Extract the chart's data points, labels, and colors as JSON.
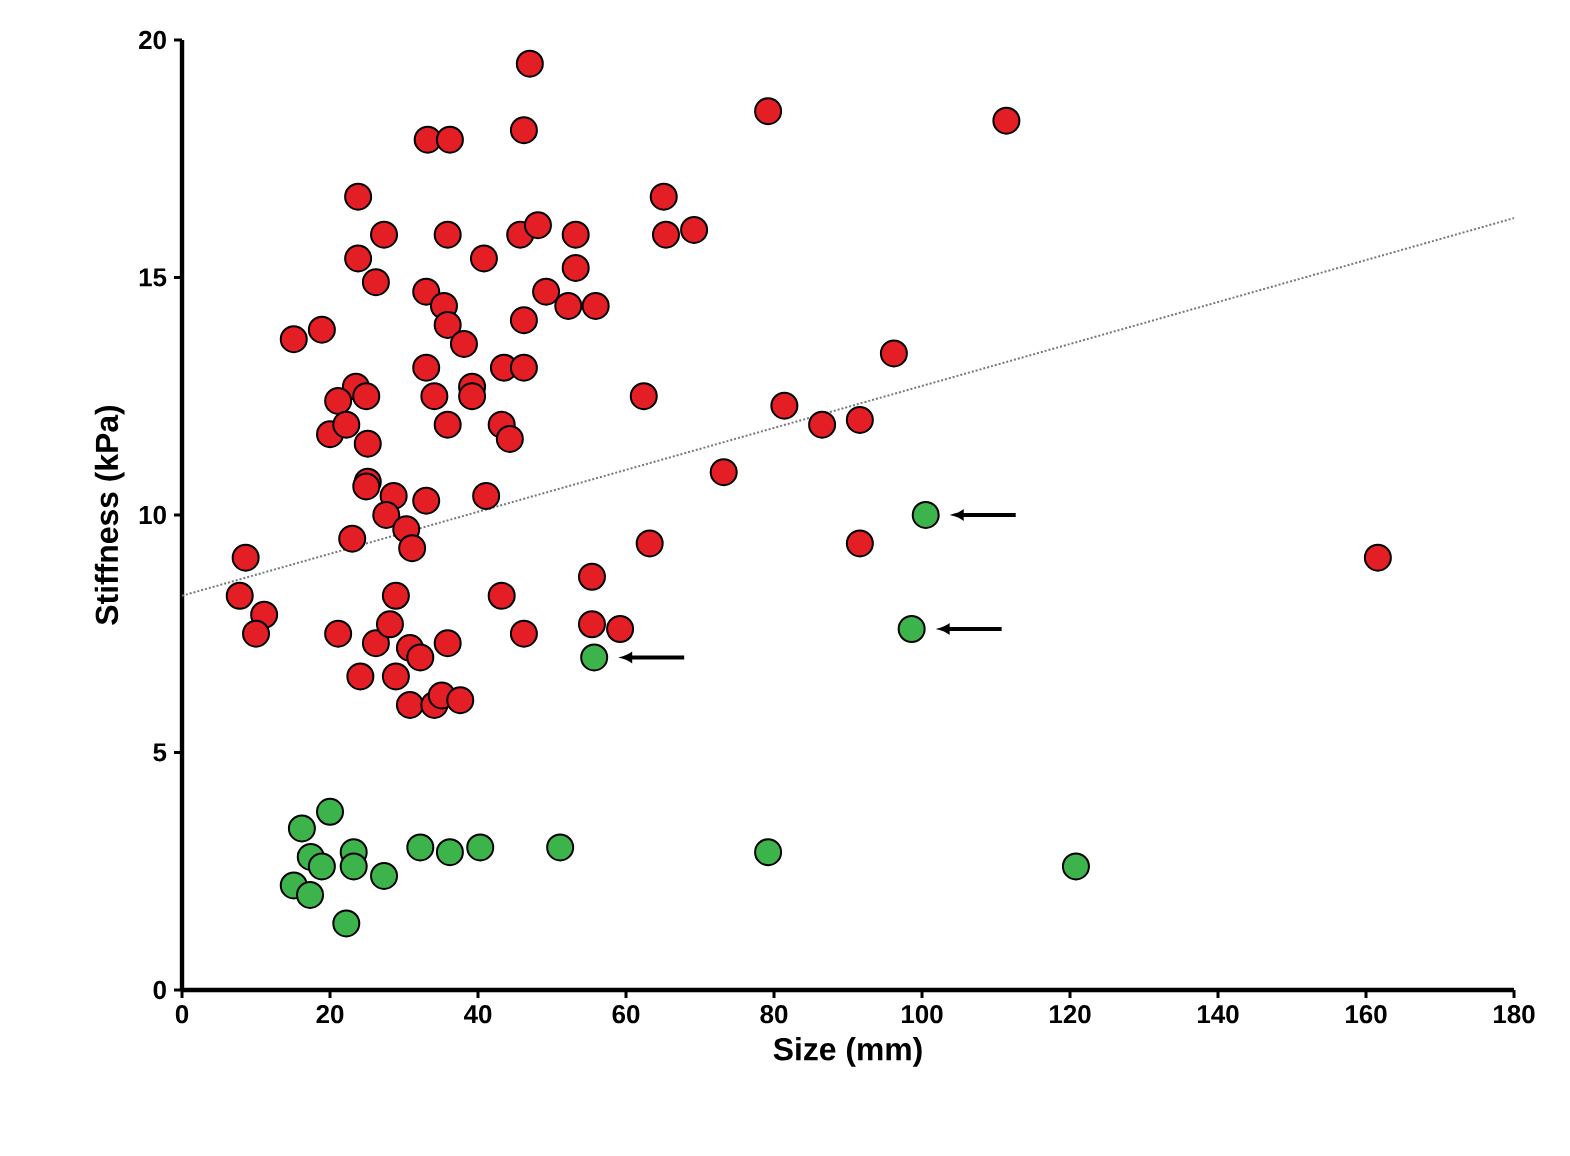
{
  "chart_data": {
    "type": "scatter",
    "xlabel": "Size (mm)",
    "ylabel": "Stiffness (kPa)",
    "xlim": [
      0,
      180
    ],
    "ylim": [
      0,
      20
    ],
    "xticks": [
      0,
      20,
      40,
      60,
      80,
      100,
      120,
      140,
      160,
      180
    ],
    "yticks": [
      0,
      5,
      10,
      15,
      20
    ],
    "grid": false,
    "series": [
      {
        "color": "#3cb44b",
        "marker": "circle",
        "x": [
          55.7,
          100.5,
          98.6,
          40.3,
          51.1,
          79.2,
          120.8,
          20.0,
          16.2,
          17.4,
          18.9,
          23.2,
          23.2,
          15.1,
          17.3,
          27.3,
          22.2,
          32.2,
          36.2
        ],
        "values": [
          7.0,
          10.0,
          7.6,
          3.0,
          3.0,
          2.9,
          2.6,
          3.75,
          3.4,
          2.8,
          2.6,
          2.9,
          2.6,
          2.2,
          2.0,
          2.4,
          1.4,
          3.0,
          2.9
        ]
      },
      {
        "color": "#e31e24",
        "marker": "circle",
        "x": [
          47.0,
          46.2,
          33.2,
          36.2,
          79.2,
          111.4,
          23.8,
          27.3,
          35.9,
          45.7,
          48.1,
          53.2,
          53.2,
          23.8,
          26.2,
          40.8,
          65.1,
          65.4,
          69.2,
          33.0,
          35.4,
          35.9,
          38.1,
          55.9,
          52.2,
          49.2,
          46.2,
          15.1,
          18.9,
          33.0,
          34.1,
          39.2,
          39.2,
          35.9,
          43.5,
          46.2,
          43.2,
          44.3,
          62.4,
          23.5,
          24.9,
          21.1,
          20.0,
          22.2,
          25.1,
          25.1,
          96.2,
          81.4,
          86.5,
          91.6,
          73.2,
          41.1,
          63.2,
          91.6,
          55.4,
          43.2,
          46.2,
          55.4,
          59.2,
          161.6,
          8.6,
          7.8,
          11.1,
          10.0,
          23.0,
          24.9,
          28.6,
          27.6,
          30.3,
          31.1,
          33.0,
          28.9,
          21.1,
          26.2,
          28.1,
          30.8,
          32.2,
          35.9,
          24.1,
          28.9,
          30.8,
          34.1,
          35.1,
          37.6
        ],
        "values": [
          19.5,
          18.1,
          17.9,
          17.9,
          18.5,
          18.3,
          16.7,
          15.9,
          15.9,
          15.9,
          16.1,
          15.9,
          15.2,
          15.4,
          14.9,
          15.4,
          16.7,
          15.9,
          16.0,
          14.7,
          14.4,
          14.0,
          13.6,
          14.4,
          14.4,
          14.7,
          14.1,
          13.7,
          13.9,
          13.1,
          12.5,
          12.7,
          12.5,
          11.9,
          13.1,
          13.1,
          11.9,
          11.6,
          12.5,
          12.7,
          12.5,
          12.4,
          11.7,
          11.9,
          11.5,
          10.7,
          13.4,
          12.3,
          11.9,
          12.0,
          10.9,
          10.4,
          9.4,
          9.4,
          8.7,
          8.3,
          7.5,
          7.7,
          7.6,
          9.1,
          9.1,
          8.3,
          7.9,
          7.5,
          9.5,
          10.6,
          10.4,
          10.0,
          9.7,
          9.3,
          10.3,
          8.3,
          7.5,
          7.3,
          7.7,
          7.2,
          7.0,
          7.3,
          6.6,
          6.6,
          6.0,
          6.0,
          6.2,
          6.1
        ]
      },
      {
        "type": "line",
        "color": "#777777",
        "line_style": "dotted",
        "marker": "none",
        "x": [
          0,
          180
        ],
        "values": [
          8.3,
          16.25
        ]
      }
    ]
  }
}
